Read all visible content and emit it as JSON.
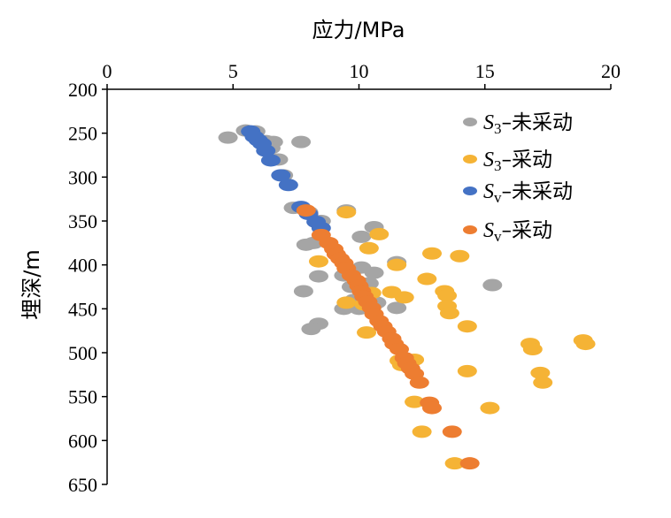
{
  "chart_data": {
    "type": "scatter",
    "title": "",
    "xlabel": "应力/MPa",
    "ylabel": "埋深/m",
    "xlim": [
      0,
      20
    ],
    "ylim": [
      200,
      650
    ],
    "y_inverted": true,
    "x_axis_position": "top",
    "x_ticks": [
      "0",
      "5",
      "10",
      "15",
      "20"
    ],
    "y_ticks": [
      "200",
      "250",
      "300",
      "350",
      "400",
      "450",
      "500",
      "550",
      "600",
      "650"
    ],
    "grid": false,
    "legend": "right",
    "series": [
      {
        "legend": {
          "main": "S",
          "sub": "3",
          "suffix": "–未采动"
        },
        "color": "#a5a5a5",
        "points": [
          [
            4.8,
            255
          ],
          [
            5.5,
            247
          ],
          [
            5.9,
            248
          ],
          [
            6.3,
            259
          ],
          [
            6.6,
            260
          ],
          [
            6.5,
            267
          ],
          [
            6.8,
            280
          ],
          [
            7.0,
            298
          ],
          [
            7.7,
            260
          ],
          [
            7.4,
            335
          ],
          [
            8.0,
            340
          ],
          [
            8.5,
            350
          ],
          [
            7.9,
            377
          ],
          [
            8.2,
            375
          ],
          [
            8.4,
            413
          ],
          [
            7.8,
            430
          ],
          [
            8.4,
            467
          ],
          [
            8.1,
            473
          ],
          [
            9.5,
            338
          ],
          [
            10.1,
            368
          ],
          [
            10.6,
            357
          ],
          [
            10.1,
            403
          ],
          [
            10.6,
            409
          ],
          [
            9.4,
            412
          ],
          [
            9.7,
            425
          ],
          [
            9.8,
            440
          ],
          [
            10.4,
            421
          ],
          [
            10.7,
            443
          ],
          [
            9.4,
            450
          ],
          [
            10.0,
            450
          ],
          [
            11.5,
            397
          ],
          [
            11.5,
            449
          ],
          [
            15.3,
            423
          ]
        ]
      },
      {
        "legend": {
          "main": "S",
          "sub": "3",
          "suffix": "–采动"
        },
        "color": "#f5b335",
        "points": [
          [
            9.5,
            340
          ],
          [
            10.8,
            365
          ],
          [
            10.4,
            381
          ],
          [
            8.4,
            396
          ],
          [
            11.5,
            400
          ],
          [
            12.9,
            387
          ],
          [
            14.0,
            390
          ],
          [
            12.7,
            416
          ],
          [
            13.4,
            430
          ],
          [
            11.3,
            431
          ],
          [
            11.8,
            437
          ],
          [
            13.5,
            435
          ],
          [
            13.5,
            447
          ],
          [
            13.6,
            455
          ],
          [
            9.5,
            443
          ],
          [
            10.2,
            445
          ],
          [
            10.5,
            432
          ],
          [
            14.3,
            470
          ],
          [
            10.3,
            477
          ],
          [
            16.8,
            490
          ],
          [
            16.9,
            496
          ],
          [
            18.9,
            486
          ],
          [
            19.0,
            490
          ],
          [
            11.6,
            509
          ],
          [
            12.2,
            508
          ],
          [
            11.7,
            514
          ],
          [
            14.3,
            521
          ],
          [
            17.2,
            523
          ],
          [
            17.3,
            534
          ],
          [
            12.2,
            556
          ],
          [
            15.2,
            563
          ],
          [
            12.5,
            590
          ],
          [
            13.8,
            626
          ]
        ]
      },
      {
        "legend": {
          "main": "S",
          "sub": "v",
          "suffix": "–未采动"
        },
        "color": "#4472c4",
        "points": [
          [
            5.7,
            248
          ],
          [
            5.85,
            254
          ],
          [
            6.0,
            258
          ],
          [
            6.15,
            262
          ],
          [
            6.3,
            270
          ],
          [
            6.5,
            281
          ],
          [
            6.9,
            298
          ],
          [
            7.2,
            309
          ],
          [
            7.7,
            334
          ],
          [
            8.0,
            342
          ],
          [
            8.3,
            351
          ],
          [
            8.5,
            358
          ]
        ]
      },
      {
        "legend": {
          "main": "S",
          "sub": "v",
          "suffix": "–采动"
        },
        "color": "#ed7d31",
        "points": [
          [
            7.9,
            338
          ],
          [
            8.5,
            366
          ],
          [
            8.8,
            375
          ],
          [
            9.0,
            382
          ],
          [
            9.1,
            388
          ],
          [
            9.25,
            393
          ],
          [
            9.4,
            398
          ],
          [
            9.5,
            404
          ],
          [
            9.7,
            412
          ],
          [
            9.9,
            418
          ],
          [
            10.0,
            424
          ],
          [
            10.1,
            430
          ],
          [
            10.2,
            436
          ],
          [
            10.35,
            442
          ],
          [
            10.5,
            449
          ],
          [
            10.6,
            456
          ],
          [
            10.8,
            464
          ],
          [
            10.95,
            470
          ],
          [
            11.1,
            476
          ],
          [
            11.3,
            484
          ],
          [
            11.4,
            490
          ],
          [
            11.6,
            496
          ],
          [
            11.8,
            506
          ],
          [
            11.9,
            512
          ],
          [
            12.05,
            518
          ],
          [
            12.2,
            524
          ],
          [
            12.4,
            534
          ],
          [
            12.8,
            557
          ],
          [
            12.9,
            563
          ],
          [
            13.7,
            590
          ],
          [
            14.4,
            626
          ]
        ]
      }
    ]
  }
}
